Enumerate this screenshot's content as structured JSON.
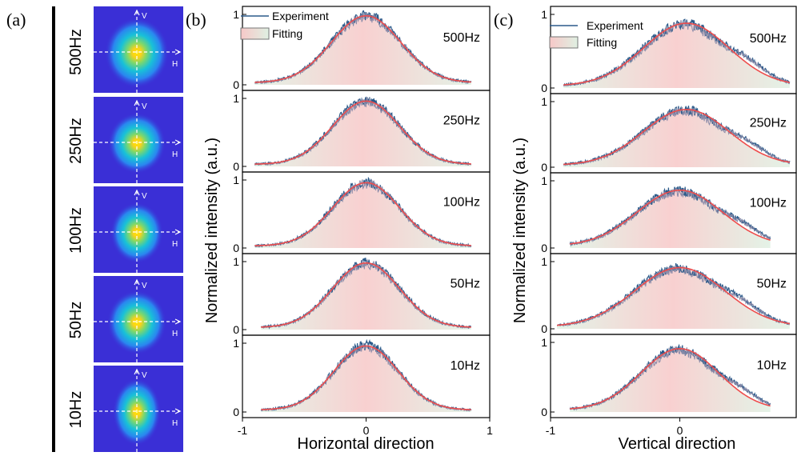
{
  "panel_letters": {
    "a": "(a)",
    "b": "(b)",
    "c": "(c)"
  },
  "frequencies": [
    "500Hz",
    "250Hz",
    "100Hz",
    "50Hz",
    "10Hz"
  ],
  "beam_axes": {
    "v": "V",
    "h": "H"
  },
  "y_ticks": [
    "0",
    "1"
  ],
  "x_ticks": [
    "-1",
    "0",
    "1"
  ],
  "colors": {
    "experiment": "#2b5a8a",
    "experiment_light": "#8a8aa8",
    "fitting": "#ee4d4d",
    "fill_center": "#f7c8c8",
    "fill_edge": "#dff0e2",
    "beam_bg": "#3a2fd6"
  },
  "chart_data": [
    {
      "type": "line",
      "title": "",
      "panel": "(b)",
      "xlabel": "Horizontal direction",
      "ylabel": "Normalized intensity (a.u.)",
      "xlim": [
        -1,
        1
      ],
      "ylim": [
        0,
        1
      ],
      "legend": {
        "entries": [
          "Experiment",
          "Fitting"
        ],
        "placement": "top-left"
      },
      "series": [
        {
          "name": "500Hz",
          "center": 0.0,
          "sigma": 0.28,
          "amplitude": 0.95,
          "x_range": [
            -0.9,
            0.85
          ]
        },
        {
          "name": "250Hz",
          "center": 0.0,
          "sigma": 0.27,
          "amplitude": 0.93,
          "x_range": [
            -0.9,
            0.85
          ]
        },
        {
          "name": "100Hz",
          "center": 0.0,
          "sigma": 0.27,
          "amplitude": 0.93,
          "x_range": [
            -0.9,
            0.85
          ]
        },
        {
          "name": "50Hz",
          "center": 0.0,
          "sigma": 0.27,
          "amplitude": 0.95,
          "x_range": [
            -0.85,
            0.85
          ]
        },
        {
          "name": "10Hz",
          "center": 0.0,
          "sigma": 0.26,
          "amplitude": 0.93,
          "x_range": [
            -0.85,
            0.85
          ]
        }
      ]
    },
    {
      "type": "line",
      "title": "",
      "panel": "(c)",
      "xlabel": "Vertical direction",
      "ylabel": "Normalized intensity (a.u.)",
      "xlim": [
        -1,
        0.9
      ],
      "ylim": [
        0,
        1
      ],
      "legend": {
        "entries": [
          "Experiment",
          "Fitting"
        ],
        "placement": "top-left"
      },
      "series": [
        {
          "name": "500Hz",
          "center": 0.05,
          "sigma": 0.33,
          "amplitude": 0.85,
          "x_range": [
            -0.9,
            0.85
          ]
        },
        {
          "name": "250Hz",
          "center": 0.05,
          "sigma": 0.33,
          "amplitude": 0.85,
          "x_range": [
            -0.9,
            0.85
          ]
        },
        {
          "name": "100Hz",
          "center": 0.0,
          "sigma": 0.33,
          "amplitude": 0.83,
          "x_range": [
            -0.85,
            0.7
          ]
        },
        {
          "name": "50Hz",
          "center": 0.0,
          "sigma": 0.35,
          "amplitude": 0.88,
          "x_range": [
            -0.95,
            0.85
          ]
        },
        {
          "name": "10Hz",
          "center": 0.0,
          "sigma": 0.3,
          "amplitude": 0.88,
          "x_range": [
            -0.85,
            0.7
          ]
        }
      ]
    }
  ]
}
